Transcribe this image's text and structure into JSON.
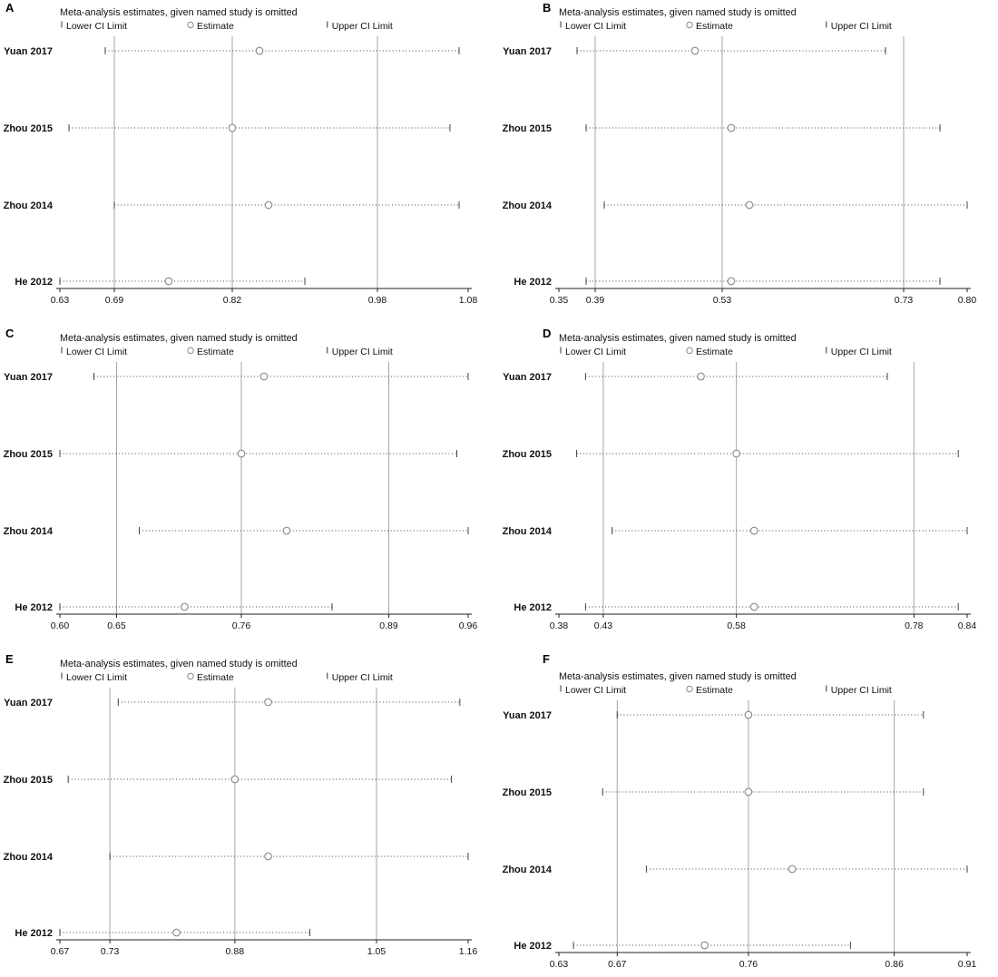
{
  "figure": {
    "description": "Leave-one-out sensitivity analysis forest plots, six panels"
  },
  "chart_data": [
    {
      "type": "scatter",
      "panel_label": "A",
      "title": "Meta-analysis estimates, given named study is omitted",
      "legend": {
        "lower": "Lower CI Limit",
        "estimate": "Estimate",
        "upper": "Upper CI Limit"
      },
      "xlim": [
        0.63,
        1.08
      ],
      "xticks": [
        0.63,
        0.69,
        0.82,
        0.98,
        1.08
      ],
      "reference_lines": [
        0.69,
        0.82,
        0.98
      ],
      "studies": [
        {
          "name": "Yuan 2017",
          "lower": 0.68,
          "estimate": 0.85,
          "upper": 1.07
        },
        {
          "name": "Zhou 2015",
          "lower": 0.64,
          "estimate": 0.82,
          "upper": 1.06
        },
        {
          "name": "Zhou 2014",
          "lower": 0.69,
          "estimate": 0.86,
          "upper": 1.07
        },
        {
          "name": "He 2012",
          "lower": 0.63,
          "estimate": 0.75,
          "upper": 0.9
        }
      ]
    },
    {
      "type": "scatter",
      "panel_label": "B",
      "title": "Meta-analysis estimates, given named study is omitted",
      "legend": {
        "lower": "Lower CI Limit",
        "estimate": "Estimate",
        "upper": "Upper CI Limit"
      },
      "xlim": [
        0.35,
        0.8
      ],
      "xticks": [
        0.35,
        0.39,
        0.53,
        0.73,
        0.8
      ],
      "reference_lines": [
        0.39,
        0.53,
        0.73
      ],
      "studies": [
        {
          "name": "Yuan 2017",
          "lower": 0.37,
          "estimate": 0.5,
          "upper": 0.71
        },
        {
          "name": "Zhou 2015",
          "lower": 0.38,
          "estimate": 0.54,
          "upper": 0.77
        },
        {
          "name": "Zhou 2014",
          "lower": 0.4,
          "estimate": 0.56,
          "upper": 0.8
        },
        {
          "name": "He 2012",
          "lower": 0.38,
          "estimate": 0.54,
          "upper": 0.77
        }
      ]
    },
    {
      "type": "scatter",
      "panel_label": "C",
      "title": "Meta-analysis estimates, given named study is omitted",
      "legend": {
        "lower": "Lower CI Limit",
        "estimate": "Estimate",
        "upper": "Upper CI Limit"
      },
      "xlim": [
        0.6,
        0.96
      ],
      "xticks": [
        0.6,
        0.65,
        0.76,
        0.89,
        0.96
      ],
      "reference_lines": [
        0.65,
        0.76,
        0.89
      ],
      "studies": [
        {
          "name": "Yuan 2017",
          "lower": 0.63,
          "estimate": 0.78,
          "upper": 0.96
        },
        {
          "name": "Zhou 2015",
          "lower": 0.6,
          "estimate": 0.76,
          "upper": 0.95
        },
        {
          "name": "Zhou 2014",
          "lower": 0.67,
          "estimate": 0.8,
          "upper": 0.96
        },
        {
          "name": "He 2012",
          "lower": 0.6,
          "estimate": 0.71,
          "upper": 0.84
        }
      ]
    },
    {
      "type": "scatter",
      "panel_label": "D",
      "title": "Meta-analysis estimates, given named study is omitted",
      "legend": {
        "lower": "Lower CI Limit",
        "estimate": "Estimate",
        "upper": "Upper CI Limit"
      },
      "xlim": [
        0.38,
        0.84
      ],
      "xticks": [
        0.38,
        0.43,
        0.58,
        0.78,
        0.84
      ],
      "reference_lines": [
        0.43,
        0.58,
        0.78
      ],
      "studies": [
        {
          "name": "Yuan 2017",
          "lower": 0.41,
          "estimate": 0.54,
          "upper": 0.75
        },
        {
          "name": "Zhou 2015",
          "lower": 0.4,
          "estimate": 0.58,
          "upper": 0.83
        },
        {
          "name": "Zhou 2014",
          "lower": 0.44,
          "estimate": 0.6,
          "upper": 0.84
        },
        {
          "name": "He 2012",
          "lower": 0.41,
          "estimate": 0.6,
          "upper": 0.83
        }
      ]
    },
    {
      "type": "scatter",
      "panel_label": "E",
      "title": "Meta-analysis estimates, given named study is omitted",
      "legend": {
        "lower": "Lower CI Limit",
        "estimate": "Estimate",
        "upper": "Upper CI Limit"
      },
      "xlim": [
        0.67,
        1.16
      ],
      "xticks": [
        0.67,
        0.73,
        0.88,
        1.05,
        1.16
      ],
      "reference_lines": [
        0.73,
        0.88,
        1.05
      ],
      "studies": [
        {
          "name": "Yuan 2017",
          "lower": 0.74,
          "estimate": 0.92,
          "upper": 1.15
        },
        {
          "name": "Zhou 2015",
          "lower": 0.68,
          "estimate": 0.88,
          "upper": 1.14
        },
        {
          "name": "Zhou 2014",
          "lower": 0.73,
          "estimate": 0.92,
          "upper": 1.16
        },
        {
          "name": "He 2012",
          "lower": 0.67,
          "estimate": 0.81,
          "upper": 0.97
        }
      ]
    },
    {
      "type": "scatter",
      "panel_label": "F",
      "title": "Meta-analysis estimates, given named study is omitted",
      "legend": {
        "lower": "Lower CI Limit",
        "estimate": "Estimate",
        "upper": "Upper CI Limit"
      },
      "xlim": [
        0.63,
        0.91
      ],
      "xticks": [
        0.63,
        0.67,
        0.76,
        0.86,
        0.91
      ],
      "reference_lines": [
        0.67,
        0.76,
        0.86
      ],
      "studies": [
        {
          "name": "Yuan 2017",
          "lower": 0.67,
          "estimate": 0.76,
          "upper": 0.88
        },
        {
          "name": "Zhou 2015",
          "lower": 0.66,
          "estimate": 0.76,
          "upper": 0.88
        },
        {
          "name": "Zhou 2014",
          "lower": 0.69,
          "estimate": 0.79,
          "upper": 0.91
        },
        {
          "name": "He 2012",
          "lower": 0.64,
          "estimate": 0.73,
          "upper": 0.83
        }
      ]
    }
  ]
}
